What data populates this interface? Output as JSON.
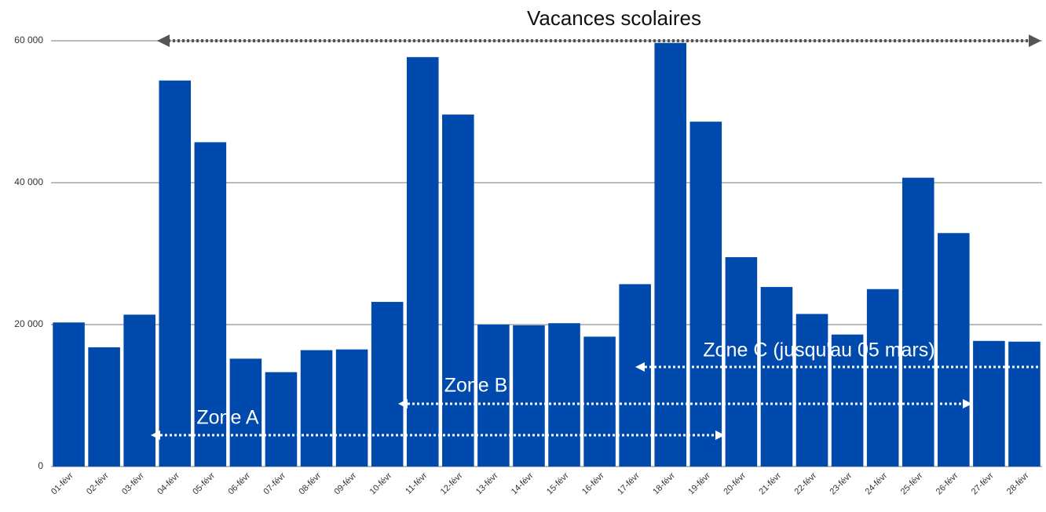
{
  "chart_data": {
    "type": "bar",
    "categories": [
      "01-févr",
      "02-févr",
      "03-févr",
      "04-févr",
      "05-févr",
      "06-févr",
      "07-févr",
      "08-févr",
      "09-févr",
      "10-févr",
      "11-févr",
      "12-févr",
      "13-févr",
      "14-févr",
      "15-févr",
      "16-févr",
      "17-févr",
      "18-févr",
      "19-févr",
      "20-févr",
      "21-févr",
      "22-févr",
      "23-févr",
      "24-févr",
      "25-févr",
      "26-févr",
      "27-févr",
      "28-févr"
    ],
    "values": [
      20300,
      16800,
      21400,
      54400,
      45700,
      15200,
      13300,
      16400,
      16500,
      23200,
      57700,
      49600,
      20000,
      19900,
      20200,
      18300,
      25700,
      59700,
      48600,
      29500,
      25300,
      21500,
      18600,
      25000,
      40700,
      32900,
      17700,
      17600
    ],
    "color": "#004aad",
    "ylim": [
      0,
      60000
    ],
    "yticks": [
      {
        "value": 0,
        "label": "0"
      },
      {
        "value": 20000,
        "label": "20 000"
      },
      {
        "value": 40000,
        "label": "40 000"
      },
      {
        "value": 60000,
        "label": "60 000"
      }
    ],
    "grid": true,
    "annotations": [
      "Vacances scolaires",
      "Zone A",
      "Zone B",
      "Zone C (jusqu'au 05 mars)"
    ]
  }
}
